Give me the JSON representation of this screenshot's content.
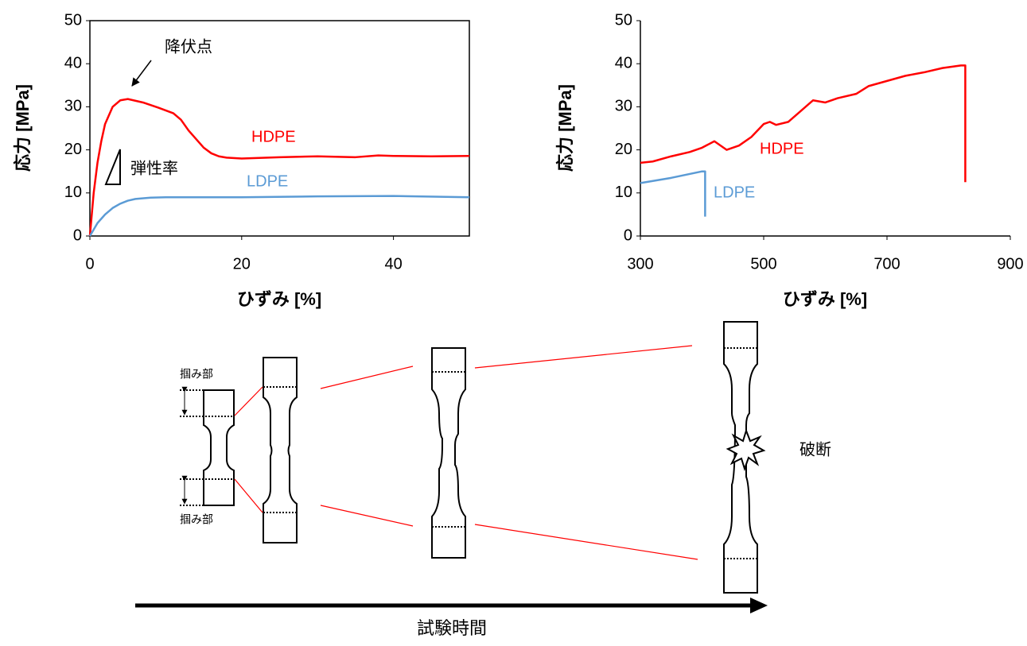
{
  "chart_data": [
    {
      "type": "line",
      "xlabel": "ひずみ [%]",
      "ylabel": "応力 [MPa]",
      "xlim": [
        0,
        50
      ],
      "ylim": [
        0,
        50
      ],
      "xticks": [
        0,
        20,
        40
      ],
      "yticks": [
        0,
        10,
        20,
        30,
        40,
        50
      ],
      "series": [
        {
          "name": "HDPE",
          "color": "#ff0000",
          "x": [
            0,
            0.5,
            1,
            1.5,
            2,
            3,
            4,
            5,
            7,
            9,
            11,
            12,
            13,
            14,
            15,
            16,
            17,
            18,
            20,
            25,
            30,
            35,
            38,
            40,
            45,
            50
          ],
          "values": [
            0,
            10,
            17,
            22,
            26,
            30,
            31.5,
            31.8,
            31,
            29.8,
            28.5,
            27,
            24.5,
            22.5,
            20.5,
            19.2,
            18.5,
            18.2,
            18,
            18.3,
            18.5,
            18.3,
            18.7,
            18.6,
            18.5,
            18.6
          ]
        },
        {
          "name": "LDPE",
          "color": "#5b9bd5",
          "x": [
            0,
            1,
            2,
            3,
            4,
            5,
            6,
            8,
            10,
            20,
            30,
            40,
            50
          ],
          "values": [
            0,
            3,
            5,
            6.5,
            7.5,
            8.2,
            8.6,
            8.9,
            9,
            9,
            9.2,
            9.3,
            9
          ]
        }
      ],
      "annotations": [
        "降伏点",
        "弾性率"
      ]
    },
    {
      "type": "line",
      "xlabel": "ひずみ [%]",
      "ylabel": "応力 [MPa]",
      "xlim": [
        300,
        900
      ],
      "ylim": [
        0,
        50
      ],
      "xticks": [
        300,
        500,
        700,
        900
      ],
      "yticks": [
        0,
        10,
        20,
        30,
        40,
        50
      ],
      "series": [
        {
          "name": "HDPE",
          "color": "#ff0000",
          "x": [
            300,
            320,
            350,
            380,
            400,
            420,
            440,
            460,
            480,
            500,
            510,
            520,
            540,
            560,
            580,
            600,
            620,
            650,
            670,
            700,
            730,
            760,
            790,
            820,
            827,
            827
          ],
          "values": [
            17,
            17.3,
            18.5,
            19.5,
            20.5,
            22,
            20,
            21,
            23,
            26,
            26.5,
            25.8,
            26.5,
            29,
            31.5,
            31,
            32,
            33,
            34.8,
            36,
            37.2,
            38,
            39,
            39.6,
            39.6,
            12.5
          ]
        },
        {
          "name": "LDPE",
          "color": "#5b9bd5",
          "x": [
            300,
            350,
            400,
            405,
            405
          ],
          "values": [
            12.3,
            13.5,
            15,
            15,
            4.5
          ]
        }
      ]
    }
  ],
  "diagram": {
    "grip_labels": [
      "掴み部",
      "掴み部"
    ],
    "break_label": "破断",
    "time_label": "試験時間"
  }
}
